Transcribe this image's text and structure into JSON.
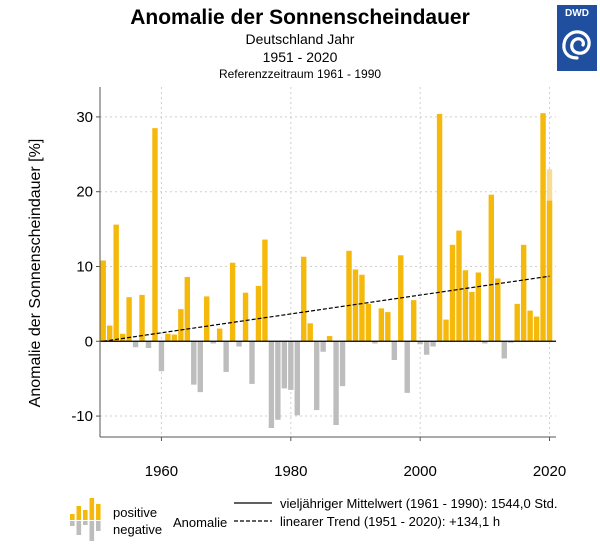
{
  "logo": {
    "text": "DWD",
    "icon": "dwd-swirl-logo-icon"
  },
  "chart_data": {
    "type": "bar",
    "title": "Anomalie der Sonnenscheindauer",
    "subtitle": "Deutschland Jahr",
    "period": "1951 - 2020",
    "reference": "Referenzzeitraum 1961 - 1990",
    "ylabel": "Anomalie der Sonnenscheindauer [%]",
    "xlabel": "",
    "xlim": [
      1950.5,
      2021
    ],
    "ylim": [
      -12.8,
      34
    ],
    "x_ticks": [
      1960,
      1980,
      2000,
      2020
    ],
    "y_ticks": [
      -10,
      0,
      10,
      20,
      30
    ],
    "grid": true,
    "x": [
      1951,
      1952,
      1953,
      1954,
      1955,
      1956,
      1957,
      1958,
      1959,
      1960,
      1961,
      1962,
      1963,
      1964,
      1965,
      1966,
      1967,
      1968,
      1969,
      1970,
      1971,
      1972,
      1973,
      1974,
      1975,
      1976,
      1977,
      1978,
      1979,
      1980,
      1981,
      1982,
      1983,
      1984,
      1985,
      1986,
      1987,
      1988,
      1989,
      1990,
      1991,
      1992,
      1993,
      1994,
      1995,
      1996,
      1997,
      1998,
      1999,
      2000,
      2001,
      2002,
      2003,
      2004,
      2005,
      2006,
      2007,
      2008,
      2009,
      2010,
      2011,
      2012,
      2013,
      2014,
      2015,
      2016,
      2017,
      2018,
      2019,
      2020
    ],
    "values": [
      10.8,
      2.1,
      15.6,
      1.0,
      5.9,
      -0.8,
      6.2,
      -0.9,
      28.5,
      -4.0,
      1.0,
      0.9,
      4.3,
      8.6,
      -5.8,
      -6.8,
      6.0,
      -0.3,
      1.7,
      -4.1,
      10.5,
      -0.7,
      6.5,
      -5.7,
      7.4,
      13.6,
      -11.6,
      -10.5,
      -6.3,
      -6.5,
      -9.9,
      11.3,
      2.4,
      -9.2,
      -1.4,
      0.7,
      -11.2,
      -6.0,
      12.1,
      9.6,
      8.9,
      5.0,
      -0.3,
      4.4,
      3.9,
      -2.5,
      11.5,
      -6.9,
      5.5,
      -0.4,
      -1.8,
      -0.7,
      30.4,
      2.9,
      12.9,
      14.8,
      9.5,
      6.6,
      9.2,
      -0.3,
      19.6,
      8.4,
      -2.3,
      -0.2,
      5.0,
      12.9,
      4.1,
      3.3,
      30.5,
      18.8
    ],
    "provisional": {
      "x": 2020,
      "value": 23.0
    },
    "colors": {
      "positive": "#f5b90b",
      "negative": "#bdbdbd",
      "provisional": "#f8dc95"
    },
    "trend": {
      "x": [
        1951,
        2020
      ],
      "values": [
        0.0,
        8.7
      ]
    },
    "legend_position": "bottom"
  },
  "legend": {
    "positive": "positive",
    "negative": "negative",
    "anomaly": "Anomalie",
    "mean": "vieljähriger Mittelwert (1961 - 1990): 1544,0 Std.",
    "trend": "linearer Trend (1951 - 2020): +134,1 h"
  }
}
